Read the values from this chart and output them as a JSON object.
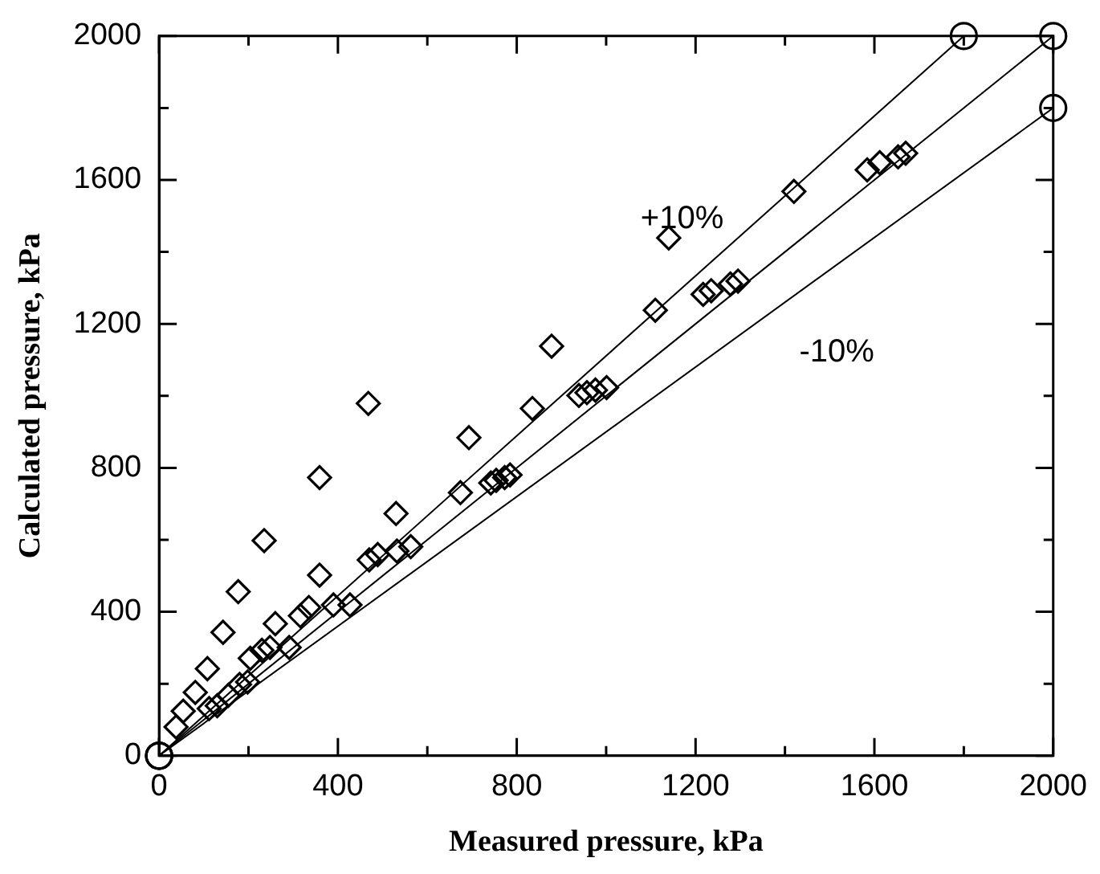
{
  "chart_data": {
    "type": "scatter",
    "xlabel": "Measured pressure, kPa",
    "ylabel": "Calculated pressure, kPa",
    "xlim": [
      0,
      2000
    ],
    "ylim": [
      0,
      2000
    ],
    "xticks": [
      0,
      {
        "value": 200,
        "label": null
      },
      400,
      {
        "value": 600,
        "label": null
      },
      800,
      {
        "value": 1000,
        "label": null
      },
      1200,
      {
        "value": 1400,
        "label": null
      },
      1600,
      {
        "value": 1800,
        "label": null
      },
      2000
    ],
    "yticks": [
      0,
      {
        "value": 200,
        "label": null
      },
      400,
      {
        "value": 600,
        "label": null
      },
      800,
      {
        "value": 1000,
        "label": null
      },
      1200,
      {
        "value": 1400,
        "label": null
      },
      1600,
      {
        "value": 1800,
        "label": null
      },
      2000
    ],
    "grid": false,
    "legend": false,
    "annotations": [
      "+10%",
      "-10%"
    ],
    "series": [
      {
        "type": "scatter",
        "marker": "diamond",
        "color": "#000000",
        "x": [
          38,
          54,
          81,
          108,
          143,
          177,
          235,
          359,
          468,
          878,
          1140,
          112,
          130,
          155,
          180,
          198,
          204,
          230,
          248,
          291,
          260,
          316,
          335,
          390,
          427,
          359,
          470,
          489,
          532,
          563,
          530,
          674,
          693,
          742,
          754,
          773,
          785,
          835,
          939,
          957,
          976,
          1001,
          1110,
          1217,
          1235,
          1278,
          1295,
          1420,
          1584,
          1612,
          1653,
          1670
        ],
        "values": [
          80,
          124,
          176,
          242,
          343,
          456,
          598,
          773,
          979,
          1138,
          1439,
          131,
          139,
          168,
          198,
          205,
          271,
          293,
          301,
          301,
          367,
          389,
          412,
          419,
          419,
          502,
          544,
          559,
          569,
          581,
          673,
          731,
          884,
          758,
          765,
          773,
          780,
          965,
          1001,
          1009,
          1016,
          1023,
          1238,
          1282,
          1292,
          1311,
          1319,
          1568,
          1628,
          1648,
          1664,
          1674
        ]
      },
      {
        "type": "line",
        "marker": "circle",
        "color": "#000000",
        "x": [
          0,
          1800
        ],
        "values": [
          0,
          2000
        ]
      },
      {
        "type": "line",
        "marker": "circle",
        "color": "#000000",
        "x": [
          0,
          2000
        ],
        "values": [
          0,
          2000
        ]
      },
      {
        "type": "line",
        "marker": "circle",
        "color": "#000000",
        "x": [
          0,
          2000
        ],
        "values": [
          0,
          1800
        ]
      }
    ]
  }
}
